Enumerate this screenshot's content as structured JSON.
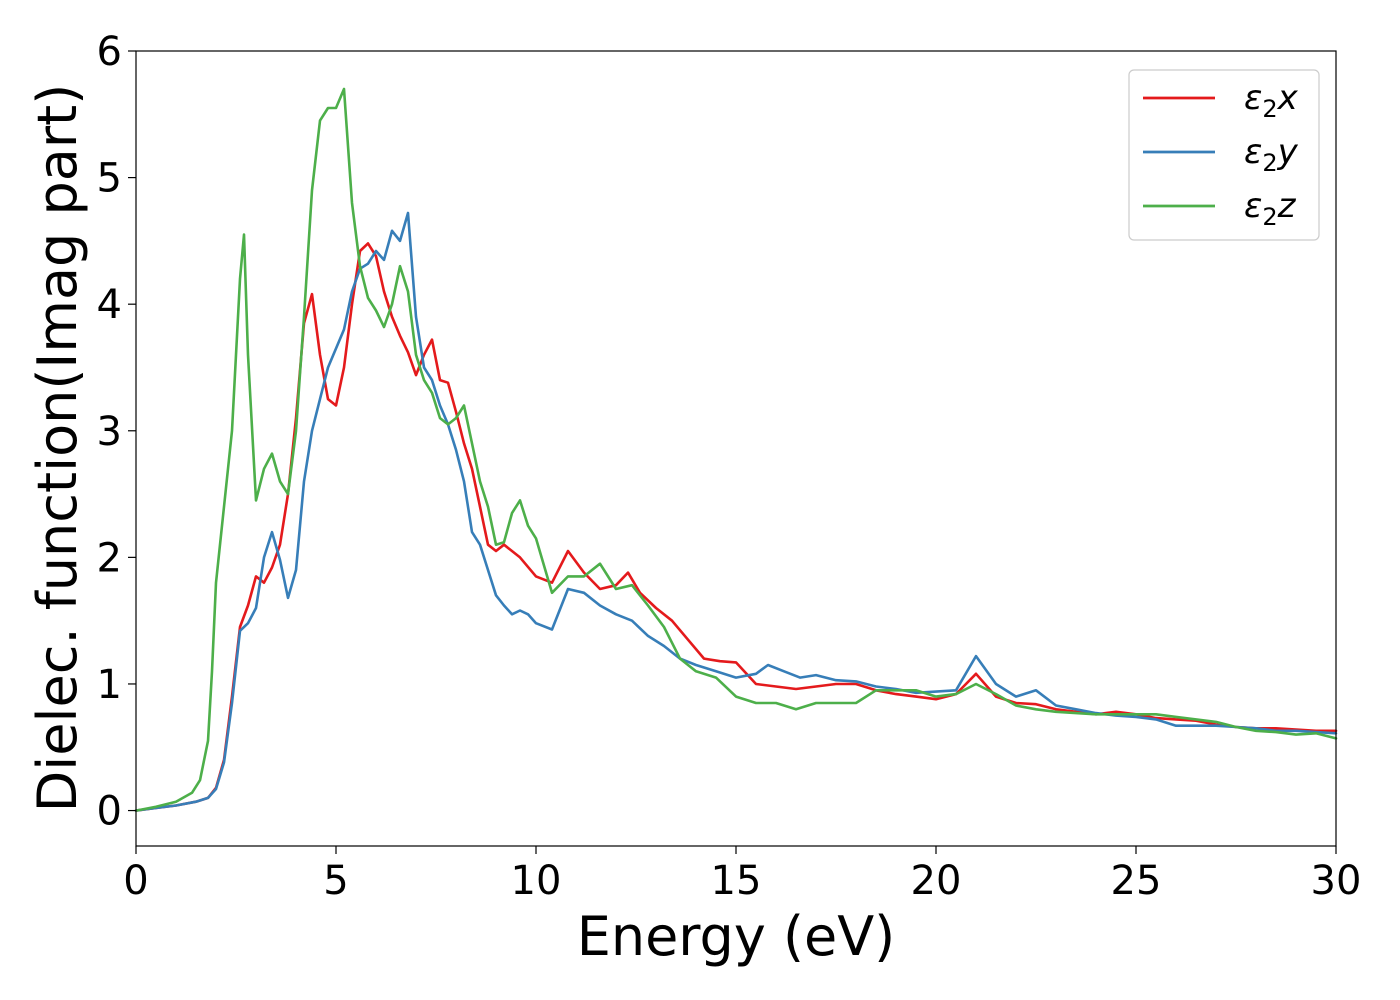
{
  "chart_data": {
    "type": "line",
    "title": "",
    "xlabel": "Energy (eV)",
    "ylabel": "Dielec. function(Imag part)",
    "xlim": [
      0,
      30
    ],
    "ylim": [
      -0.28,
      6.0
    ],
    "xticks": [
      0,
      5,
      10,
      15,
      20,
      25,
      30
    ],
    "yticks": [
      0,
      1,
      2,
      3,
      4,
      5,
      6
    ],
    "grid": false,
    "legend_position": "top-right",
    "series": [
      {
        "name": "ε₂x",
        "legend_base": "ε",
        "legend_sub": "2",
        "legend_suffix": "x",
        "color": "#e41a1c",
        "points": [
          [
            0,
            0.0
          ],
          [
            0.5,
            0.02
          ],
          [
            1.0,
            0.04
          ],
          [
            1.5,
            0.07
          ],
          [
            1.8,
            0.1
          ],
          [
            2.0,
            0.18
          ],
          [
            2.2,
            0.4
          ],
          [
            2.4,
            0.9
          ],
          [
            2.6,
            1.45
          ],
          [
            2.8,
            1.62
          ],
          [
            3.0,
            1.85
          ],
          [
            3.2,
            1.8
          ],
          [
            3.4,
            1.92
          ],
          [
            3.6,
            2.1
          ],
          [
            3.8,
            2.5
          ],
          [
            4.0,
            3.1
          ],
          [
            4.2,
            3.85
          ],
          [
            4.4,
            4.08
          ],
          [
            4.6,
            3.6
          ],
          [
            4.8,
            3.25
          ],
          [
            5.0,
            3.2
          ],
          [
            5.2,
            3.5
          ],
          [
            5.4,
            4.0
          ],
          [
            5.6,
            4.42
          ],
          [
            5.8,
            4.48
          ],
          [
            6.0,
            4.38
          ],
          [
            6.2,
            4.1
          ],
          [
            6.4,
            3.9
          ],
          [
            6.6,
            3.75
          ],
          [
            6.8,
            3.62
          ],
          [
            7.0,
            3.44
          ],
          [
            7.2,
            3.6
          ],
          [
            7.4,
            3.72
          ],
          [
            7.6,
            3.4
          ],
          [
            7.8,
            3.38
          ],
          [
            8.0,
            3.15
          ],
          [
            8.2,
            2.9
          ],
          [
            8.4,
            2.7
          ],
          [
            8.6,
            2.4
          ],
          [
            8.8,
            2.1
          ],
          [
            9.0,
            2.05
          ],
          [
            9.2,
            2.1
          ],
          [
            9.6,
            2.0
          ],
          [
            10.0,
            1.85
          ],
          [
            10.4,
            1.8
          ],
          [
            10.8,
            2.05
          ],
          [
            11.2,
            1.88
          ],
          [
            11.6,
            1.75
          ],
          [
            12.0,
            1.78
          ],
          [
            12.3,
            1.88
          ],
          [
            12.6,
            1.72
          ],
          [
            13.0,
            1.6
          ],
          [
            13.4,
            1.5
          ],
          [
            13.8,
            1.35
          ],
          [
            14.2,
            1.2
          ],
          [
            14.6,
            1.18
          ],
          [
            15.0,
            1.17
          ],
          [
            15.5,
            1.0
          ],
          [
            16.0,
            0.98
          ],
          [
            16.5,
            0.96
          ],
          [
            17.0,
            0.98
          ],
          [
            17.5,
            1.0
          ],
          [
            18.0,
            1.0
          ],
          [
            18.5,
            0.95
          ],
          [
            19.0,
            0.92
          ],
          [
            19.5,
            0.9
          ],
          [
            20.0,
            0.88
          ],
          [
            20.5,
            0.92
          ],
          [
            21.0,
            1.08
          ],
          [
            21.5,
            0.9
          ],
          [
            22.0,
            0.85
          ],
          [
            22.5,
            0.84
          ],
          [
            23.0,
            0.8
          ],
          [
            23.5,
            0.78
          ],
          [
            24.0,
            0.76
          ],
          [
            24.5,
            0.78
          ],
          [
            25.0,
            0.76
          ],
          [
            25.5,
            0.73
          ],
          [
            26.0,
            0.72
          ],
          [
            26.5,
            0.71
          ],
          [
            27.0,
            0.68
          ],
          [
            27.5,
            0.66
          ],
          [
            28.0,
            0.65
          ],
          [
            28.5,
            0.65
          ],
          [
            29.0,
            0.64
          ],
          [
            29.5,
            0.63
          ],
          [
            30.0,
            0.63
          ]
        ]
      },
      {
        "name": "ε₂y",
        "legend_base": "ε",
        "legend_sub": "2",
        "legend_suffix": "y",
        "color": "#377eb8",
        "points": [
          [
            0,
            0.0
          ],
          [
            0.5,
            0.02
          ],
          [
            1.0,
            0.04
          ],
          [
            1.5,
            0.07
          ],
          [
            1.8,
            0.1
          ],
          [
            2.0,
            0.17
          ],
          [
            2.2,
            0.38
          ],
          [
            2.4,
            0.85
          ],
          [
            2.6,
            1.42
          ],
          [
            2.8,
            1.48
          ],
          [
            3.0,
            1.6
          ],
          [
            3.2,
            2.0
          ],
          [
            3.4,
            2.2
          ],
          [
            3.6,
            1.98
          ],
          [
            3.8,
            1.68
          ],
          [
            4.0,
            1.9
          ],
          [
            4.2,
            2.6
          ],
          [
            4.4,
            3.0
          ],
          [
            4.6,
            3.25
          ],
          [
            4.8,
            3.5
          ],
          [
            5.0,
            3.65
          ],
          [
            5.2,
            3.8
          ],
          [
            5.4,
            4.1
          ],
          [
            5.6,
            4.28
          ],
          [
            5.8,
            4.32
          ],
          [
            6.0,
            4.42
          ],
          [
            6.2,
            4.35
          ],
          [
            6.4,
            4.58
          ],
          [
            6.6,
            4.5
          ],
          [
            6.8,
            4.72
          ],
          [
            7.0,
            3.9
          ],
          [
            7.2,
            3.5
          ],
          [
            7.4,
            3.4
          ],
          [
            7.6,
            3.2
          ],
          [
            7.8,
            3.05
          ],
          [
            8.0,
            2.85
          ],
          [
            8.2,
            2.6
          ],
          [
            8.4,
            2.2
          ],
          [
            8.6,
            2.1
          ],
          [
            8.8,
            1.9
          ],
          [
            9.0,
            1.7
          ],
          [
            9.2,
            1.62
          ],
          [
            9.4,
            1.55
          ],
          [
            9.6,
            1.58
          ],
          [
            9.8,
            1.55
          ],
          [
            10.0,
            1.48
          ],
          [
            10.4,
            1.43
          ],
          [
            10.8,
            1.75
          ],
          [
            11.2,
            1.72
          ],
          [
            11.6,
            1.62
          ],
          [
            12.0,
            1.55
          ],
          [
            12.4,
            1.5
          ],
          [
            12.8,
            1.38
          ],
          [
            13.2,
            1.3
          ],
          [
            13.6,
            1.2
          ],
          [
            14.0,
            1.15
          ],
          [
            14.5,
            1.1
          ],
          [
            15.0,
            1.05
          ],
          [
            15.5,
            1.08
          ],
          [
            15.8,
            1.15
          ],
          [
            16.2,
            1.1
          ],
          [
            16.6,
            1.05
          ],
          [
            17.0,
            1.07
          ],
          [
            17.5,
            1.03
          ],
          [
            18.0,
            1.02
          ],
          [
            18.5,
            0.98
          ],
          [
            19.0,
            0.96
          ],
          [
            19.5,
            0.93
          ],
          [
            20.0,
            0.94
          ],
          [
            20.5,
            0.95
          ],
          [
            21.0,
            1.22
          ],
          [
            21.5,
            1.0
          ],
          [
            22.0,
            0.9
          ],
          [
            22.5,
            0.95
          ],
          [
            23.0,
            0.83
          ],
          [
            23.5,
            0.8
          ],
          [
            24.0,
            0.77
          ],
          [
            24.5,
            0.75
          ],
          [
            25.0,
            0.74
          ],
          [
            25.5,
            0.72
          ],
          [
            26.0,
            0.67
          ],
          [
            26.5,
            0.67
          ],
          [
            27.0,
            0.67
          ],
          [
            27.5,
            0.66
          ],
          [
            28.0,
            0.65
          ],
          [
            28.5,
            0.63
          ],
          [
            29.0,
            0.63
          ],
          [
            29.5,
            0.62
          ],
          [
            30.0,
            0.61
          ]
        ]
      },
      {
        "name": "ε₂z",
        "legend_base": "ε",
        "legend_sub": "2",
        "legend_suffix": "z",
        "color": "#4daf4a",
        "points": [
          [
            0,
            0.0
          ],
          [
            0.5,
            0.03
          ],
          [
            1.0,
            0.07
          ],
          [
            1.4,
            0.14
          ],
          [
            1.6,
            0.24
          ],
          [
            1.8,
            0.55
          ],
          [
            1.9,
            1.1
          ],
          [
            2.0,
            1.8
          ],
          [
            2.2,
            2.4
          ],
          [
            2.4,
            3.0
          ],
          [
            2.6,
            4.2
          ],
          [
            2.7,
            4.55
          ],
          [
            2.8,
            3.6
          ],
          [
            3.0,
            2.45
          ],
          [
            3.2,
            2.7
          ],
          [
            3.4,
            2.82
          ],
          [
            3.6,
            2.6
          ],
          [
            3.8,
            2.5
          ],
          [
            4.0,
            3.0
          ],
          [
            4.2,
            3.9
          ],
          [
            4.4,
            4.9
          ],
          [
            4.6,
            5.45
          ],
          [
            4.8,
            5.55
          ],
          [
            5.0,
            5.55
          ],
          [
            5.2,
            5.7
          ],
          [
            5.4,
            4.8
          ],
          [
            5.6,
            4.3
          ],
          [
            5.8,
            4.05
          ],
          [
            6.0,
            3.95
          ],
          [
            6.2,
            3.82
          ],
          [
            6.4,
            4.0
          ],
          [
            6.6,
            4.3
          ],
          [
            6.8,
            4.1
          ],
          [
            7.0,
            3.6
          ],
          [
            7.2,
            3.4
          ],
          [
            7.4,
            3.3
          ],
          [
            7.6,
            3.1
          ],
          [
            7.8,
            3.05
          ],
          [
            8.0,
            3.1
          ],
          [
            8.2,
            3.2
          ],
          [
            8.4,
            2.9
          ],
          [
            8.6,
            2.6
          ],
          [
            8.8,
            2.4
          ],
          [
            9.0,
            2.1
          ],
          [
            9.2,
            2.12
          ],
          [
            9.4,
            2.35
          ],
          [
            9.6,
            2.45
          ],
          [
            9.8,
            2.25
          ],
          [
            10.0,
            2.15
          ],
          [
            10.4,
            1.72
          ],
          [
            10.8,
            1.85
          ],
          [
            11.2,
            1.85
          ],
          [
            11.6,
            1.95
          ],
          [
            12.0,
            1.75
          ],
          [
            12.4,
            1.78
          ],
          [
            12.8,
            1.62
          ],
          [
            13.2,
            1.45
          ],
          [
            13.6,
            1.2
          ],
          [
            14.0,
            1.1
          ],
          [
            14.5,
            1.05
          ],
          [
            15.0,
            0.9
          ],
          [
            15.5,
            0.85
          ],
          [
            16.0,
            0.85
          ],
          [
            16.5,
            0.8
          ],
          [
            17.0,
            0.85
          ],
          [
            17.5,
            0.85
          ],
          [
            18.0,
            0.85
          ],
          [
            18.5,
            0.95
          ],
          [
            19.0,
            0.95
          ],
          [
            19.5,
            0.95
          ],
          [
            20.0,
            0.9
          ],
          [
            20.5,
            0.92
          ],
          [
            21.0,
            1.0
          ],
          [
            21.5,
            0.92
          ],
          [
            22.0,
            0.83
          ],
          [
            22.5,
            0.8
          ],
          [
            23.0,
            0.78
          ],
          [
            23.5,
            0.77
          ],
          [
            24.0,
            0.76
          ],
          [
            24.5,
            0.76
          ],
          [
            25.0,
            0.76
          ],
          [
            25.5,
            0.76
          ],
          [
            26.0,
            0.74
          ],
          [
            26.5,
            0.72
          ],
          [
            27.0,
            0.7
          ],
          [
            27.5,
            0.66
          ],
          [
            28.0,
            0.63
          ],
          [
            28.5,
            0.62
          ],
          [
            29.0,
            0.6
          ],
          [
            29.5,
            0.61
          ],
          [
            30.0,
            0.57
          ]
        ]
      }
    ]
  }
}
